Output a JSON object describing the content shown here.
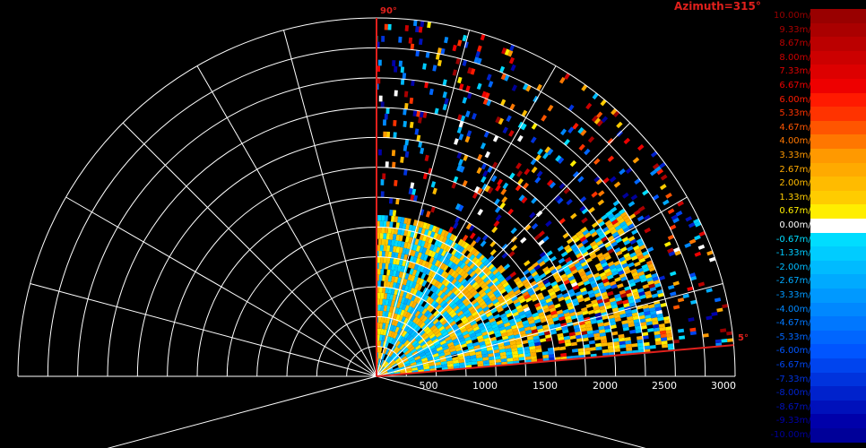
{
  "chart_data": {
    "type": "radar-ppi-sector",
    "title": "Azimuth=315°",
    "sector_edge_labels": [
      "90°",
      "5°"
    ],
    "sector_start_deg": 5,
    "sector_end_deg": 90,
    "range_ticks": [
      "500",
      "1000",
      "1500",
      "2000",
      "2500",
      "3000"
    ],
    "range_tick_values": [
      500,
      1000,
      1500,
      2000,
      2500,
      3000
    ],
    "range_max": 3000,
    "grid": "polar, rings every 250, spokes every 15°",
    "colorbar": {
      "unit": "m/s",
      "labels": [
        "10.00m/s",
        "9.33m/s",
        "8.67m/s",
        "8.00m/s",
        "7.33m/s",
        "6.67m/s",
        "6.00m/s",
        "5.33m/s",
        "4.67m/s",
        "4.00m/s",
        "3.33m/s",
        "2.67m/s",
        "2.00m/s",
        "1.33m/s",
        "0.67m/s",
        "0.00m/s",
        "-0.67m/s",
        "-1.33m/s",
        "-2.00m/s",
        "-2.67m/s",
        "-3.33m/s",
        "-4.00m/s",
        "-4.67m/s",
        "-5.33m/s",
        "-6.00m/s",
        "-6.67m/s",
        "-7.33m/s",
        "-8.00m/s",
        "-8.67m/s",
        "-9.33m/s",
        "-10.00m/s"
      ],
      "colors": [
        "#990000",
        "#aa0000",
        "#bb0000",
        "#cc0000",
        "#dd0000",
        "#ee0000",
        "#ff1a00",
        "#ff3300",
        "#ff5500",
        "#ff7700",
        "#ff9900",
        "#ffaa00",
        "#ffbb00",
        "#ffcc00",
        "#ffee00",
        "#ffffff",
        "#00ddff",
        "#00ccff",
        "#00bbff",
        "#00aaff",
        "#0099ff",
        "#0088ff",
        "#0077ff",
        "#0066ff",
        "#0055ff",
        "#0044ee",
        "#0033dd",
        "#0022cc",
        "#0011bb",
        "#0000aa",
        "#000099"
      ]
    }
  }
}
